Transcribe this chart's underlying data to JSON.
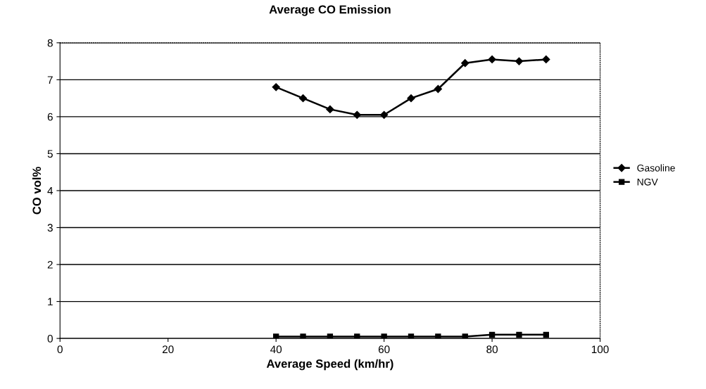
{
  "chart_data": {
    "type": "line",
    "title": "Average CO Emission",
    "xlabel": "Average Speed (km/hr)",
    "ylabel": "CO vol%",
    "x": [
      40,
      45,
      50,
      55,
      60,
      65,
      70,
      75,
      80,
      85,
      90
    ],
    "series": [
      {
        "name": "Gasoline",
        "color": "#000000",
        "marker": "diamond",
        "values": [
          6.8,
          6.5,
          6.2,
          6.05,
          6.05,
          6.5,
          6.75,
          7.45,
          7.55,
          7.5,
          7.55
        ]
      },
      {
        "name": "NGV",
        "color": "#000000",
        "marker": "square",
        "values": [
          0.05,
          0.05,
          0.05,
          0.05,
          0.05,
          0.05,
          0.05,
          0.05,
          0.1,
          0.1,
          0.1
        ]
      }
    ],
    "xlim": [
      0,
      100
    ],
    "xticks": [
      0,
      20,
      40,
      60,
      80,
      100
    ],
    "ylim": [
      0,
      8
    ],
    "yticks": [
      0,
      1,
      2,
      3,
      4,
      5,
      6,
      7,
      8
    ],
    "grid": "y",
    "legend": "right",
    "line_style": "solid"
  }
}
